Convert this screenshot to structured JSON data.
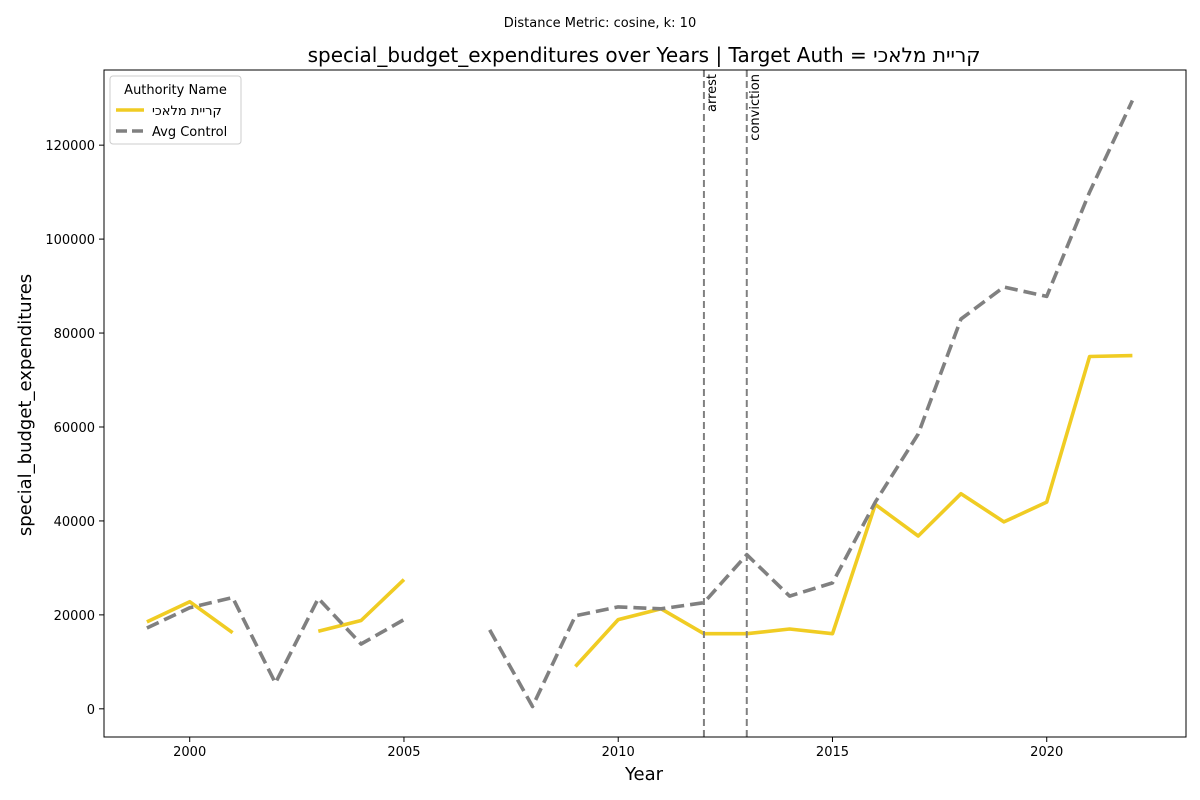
{
  "suptitle": "Distance Metric: cosine, k: 10",
  "chart_data": {
    "type": "line",
    "title": "special_budget_expenditures over Years | Target Auth = קריית מלאכי",
    "xlabel": "Year",
    "ylabel": "special_budget_expenditures",
    "xlim": [
      1998,
      2023.25
    ],
    "ylim": [
      -6000,
      136000
    ],
    "xticks": [
      2000,
      2005,
      2010,
      2015,
      2020
    ],
    "yticks": [
      0,
      20000,
      40000,
      60000,
      80000,
      100000,
      120000
    ],
    "grid": false,
    "legend": {
      "title": "Authority Name",
      "placement": "top-left"
    },
    "events": [
      {
        "x": 2012,
        "label": "arrest"
      },
      {
        "x": 2013,
        "label": "conviction"
      }
    ],
    "x": [
      1999,
      2000,
      2001,
      2002,
      2003,
      2004,
      2005,
      2006,
      2007,
      2008,
      2009,
      2010,
      2011,
      2012,
      2013,
      2014,
      2015,
      2016,
      2017,
      2018,
      2019,
      2020,
      2021,
      2022
    ],
    "series": [
      {
        "name": "קריית מלאכי",
        "color": "#f0cc23",
        "style": "solid",
        "values": [
          18500,
          22800,
          16200,
          null,
          16500,
          18800,
          27500,
          null,
          null,
          null,
          9000,
          19000,
          21300,
          16000,
          16000,
          17000,
          16000,
          43500,
          36800,
          45800,
          39800,
          44000,
          75000,
          75200
        ]
      },
      {
        "name": "Avg Control",
        "color": "#808080",
        "style": "dashed",
        "values": [
          17200,
          21500,
          23700,
          5500,
          23500,
          13800,
          19000,
          null,
          16800,
          500,
          19800,
          21700,
          21300,
          22600,
          32800,
          24000,
          26800,
          44000,
          58500,
          83000,
          89800,
          87800,
          110000,
          129500
        ]
      }
    ]
  }
}
